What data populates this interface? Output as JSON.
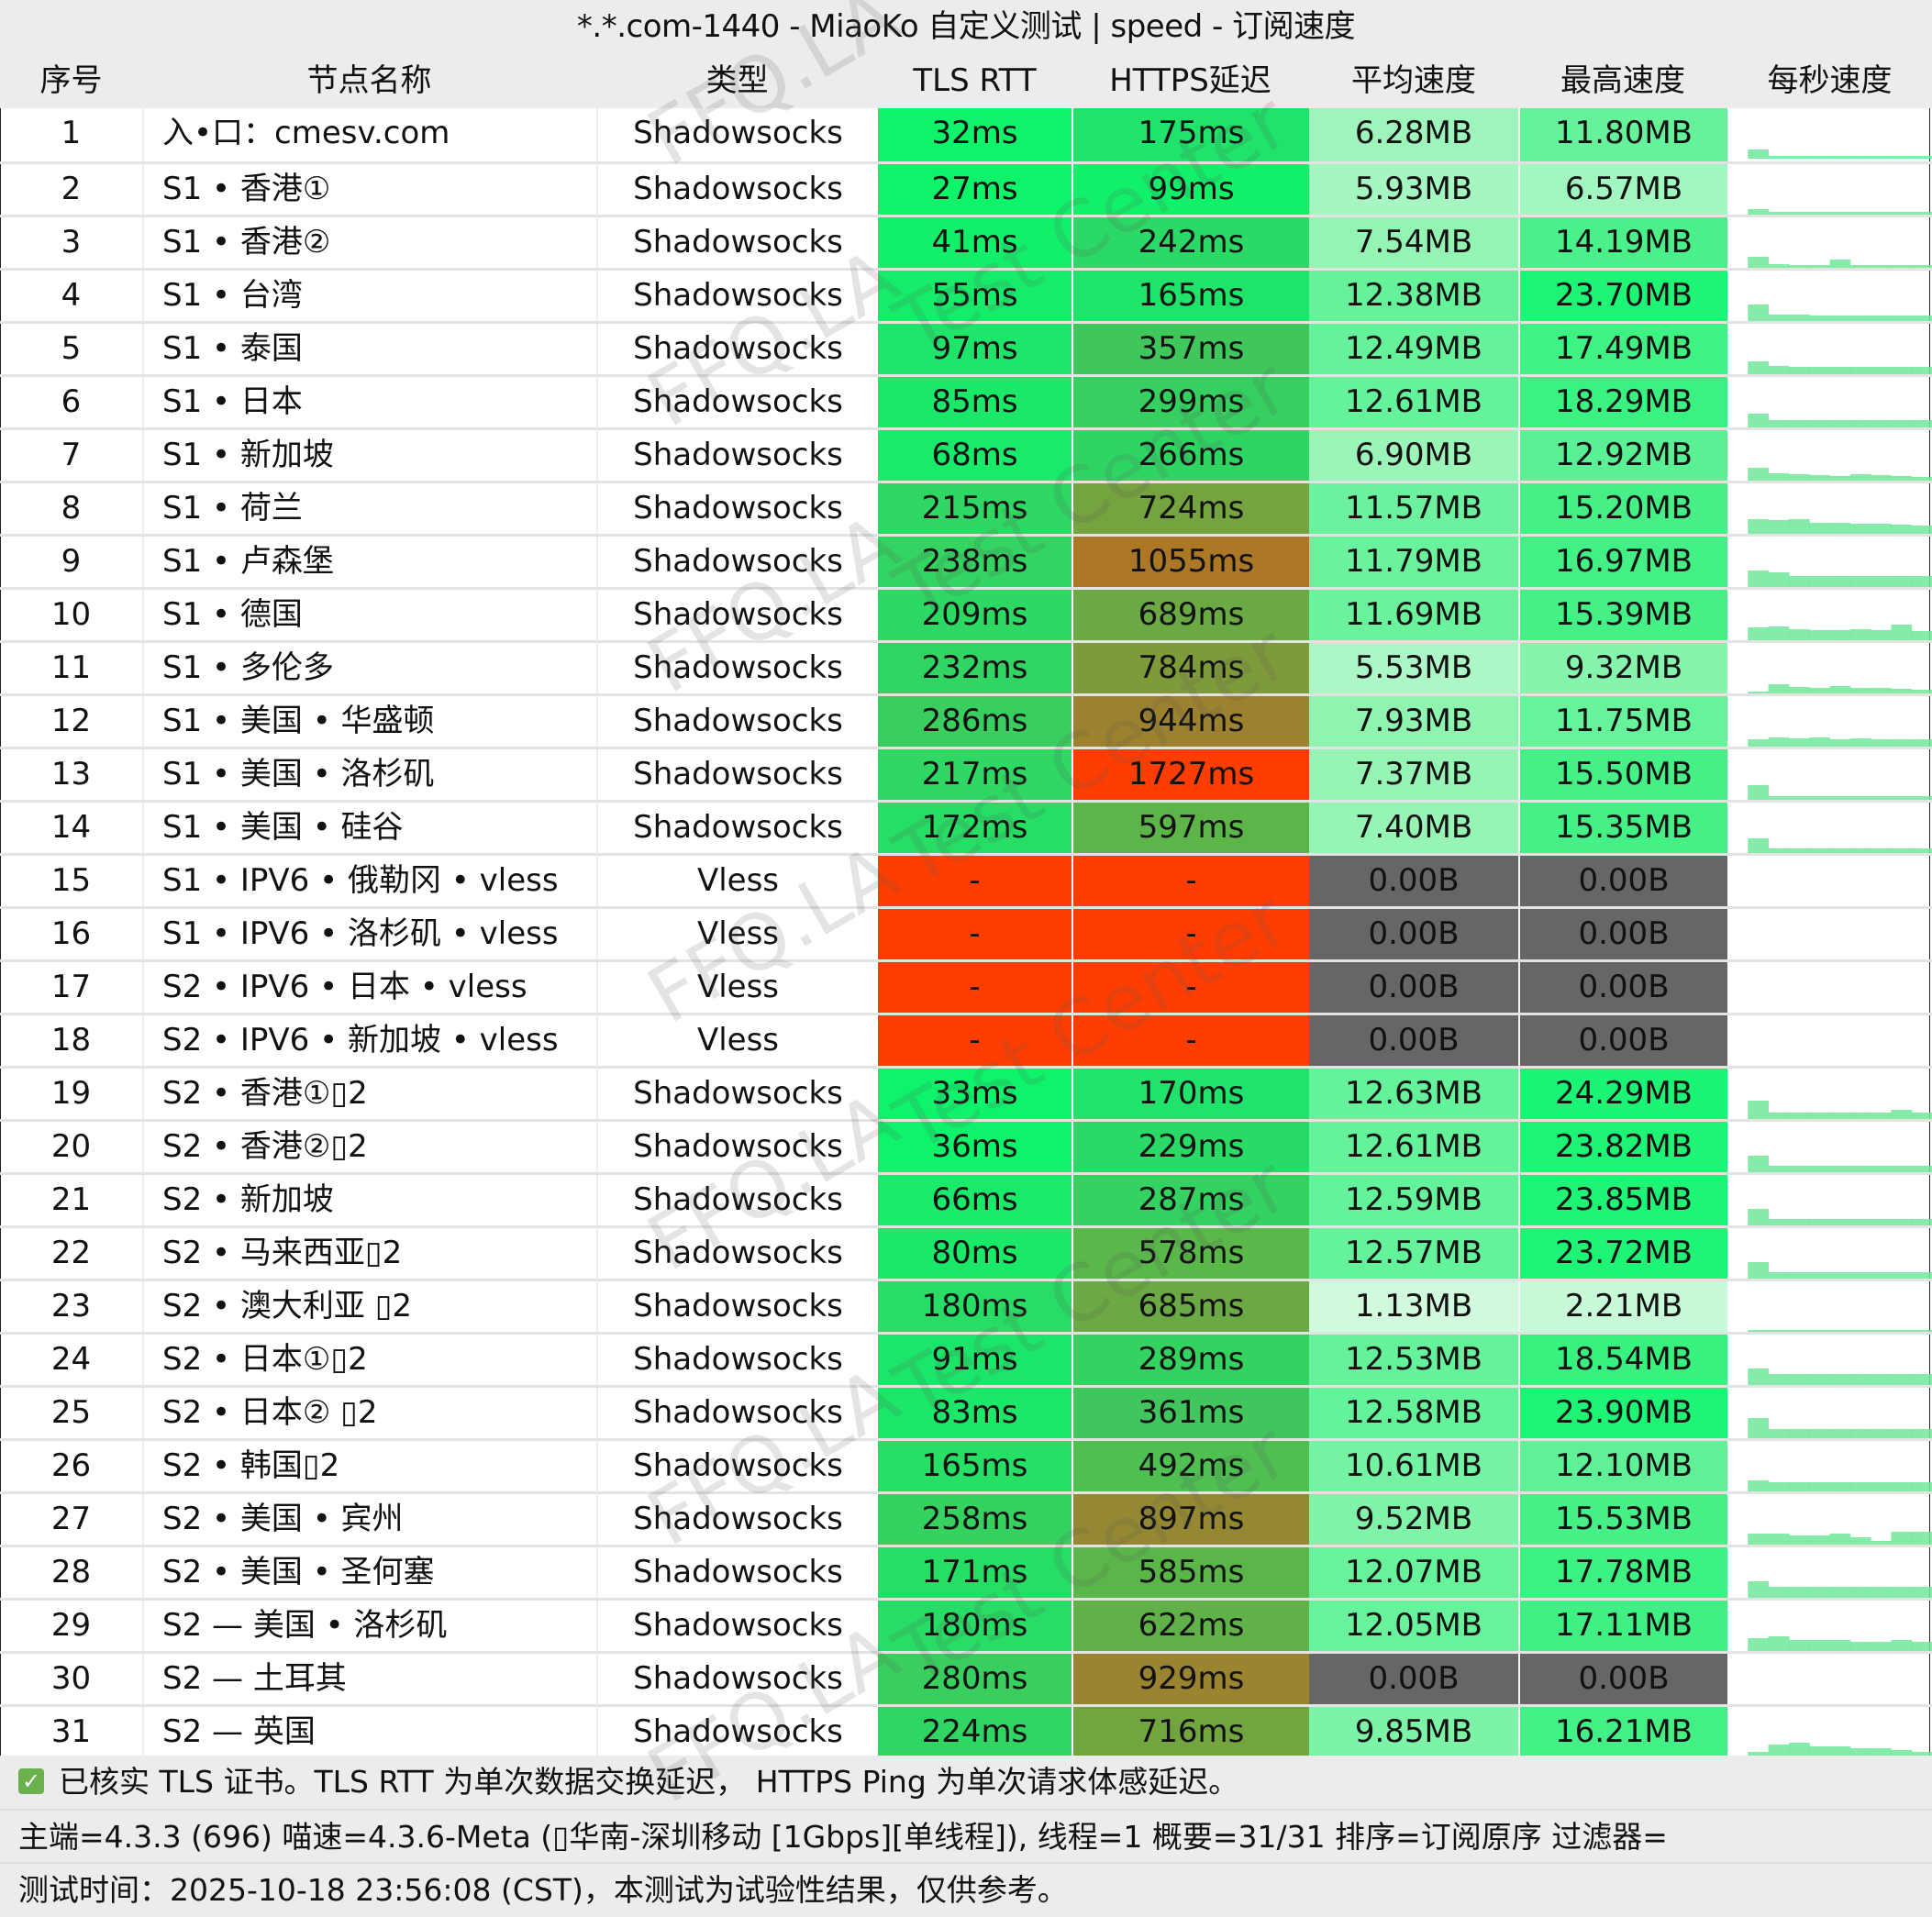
{
  "title": "*.*.com-1440 - MiaoKo 自定义测试 | speed - 订阅速度",
  "columns": [
    "序号",
    "节点名称",
    "类型",
    "TLS RTT",
    "HTTPS延迟",
    "平均速度",
    "最高速度",
    "每秒速度"
  ],
  "colors": {
    "header_bg": "#ececec",
    "fail_red": "#ff3d00",
    "zero_gray": "#666666",
    "checkbox_green": "#6ab04c",
    "sparkline": "#6ee89a"
  },
  "rows": [
    {
      "idx": "1",
      "name": "入•口：cmesv.com",
      "type": "Shadowsocks",
      "tls": "32ms",
      "tls_bg": "#0ef46a",
      "https": "175ms",
      "https_bg": "#1fe36a",
      "avg": "6.28MB",
      "avg_bg": "#9ef5bb",
      "max": "11.80MB",
      "max_bg": "#66f29b",
      "spark": [
        0,
        10,
        3,
        3,
        3,
        3,
        3,
        3,
        3,
        3
      ]
    },
    {
      "idx": "2",
      "name": "S1 • 香港①",
      "type": "Shadowsocks",
      "tls": "27ms",
      "tls_bg": "#0ef46a",
      "https": "99ms",
      "https_bg": "#12f06a",
      "avg": "5.93MB",
      "avg_bg": "#a6f6c1",
      "max": "6.57MB",
      "max_bg": "#a2f6bf",
      "spark": [
        0,
        6,
        3,
        3,
        3,
        3,
        3,
        3,
        3,
        3
      ]
    },
    {
      "idx": "3",
      "name": "S1 • 香港②",
      "type": "Shadowsocks",
      "tls": "41ms",
      "tls_bg": "#12f06a",
      "https": "242ms",
      "https_bg": "#2bd966",
      "avg": "7.54MB",
      "avg_bg": "#94f4b4",
      "max": "14.19MB",
      "max_bg": "#4af089",
      "spark": [
        0,
        12,
        4,
        3,
        3,
        9,
        3,
        3,
        3,
        3
      ]
    },
    {
      "idx": "4",
      "name": "S1 • 台湾",
      "type": "Shadowsocks",
      "tls": "55ms",
      "tls_bg": "#16ec69",
      "https": "165ms",
      "https_bg": "#1fe46a",
      "avg": "12.38MB",
      "avg_bg": "#66f29b",
      "max": "23.70MB",
      "max_bg": "#1ef577",
      "spark": [
        0,
        18,
        7,
        7,
        6,
        6,
        6,
        6,
        6,
        6
      ]
    },
    {
      "idx": "5",
      "name": "S1 • 泰国",
      "type": "Shadowsocks",
      "tls": "97ms",
      "tls_bg": "#1ee569",
      "https": "357ms",
      "https_bg": "#3fc75c",
      "avg": "12.49MB",
      "avg_bg": "#66f29b",
      "max": "17.49MB",
      "max_bg": "#3ef283",
      "spark": [
        0,
        14,
        9,
        8,
        8,
        8,
        8,
        8,
        8,
        8
      ]
    },
    {
      "idx": "6",
      "name": "S1 • 日本",
      "type": "Shadowsocks",
      "tls": "85ms",
      "tls_bg": "#1be769",
      "https": "299ms",
      "https_bg": "#35d060",
      "avg": "12.61MB",
      "avg_bg": "#64f29a",
      "max": "18.29MB",
      "max_bg": "#3af281",
      "spark": [
        0,
        15,
        8,
        8,
        8,
        8,
        8,
        8,
        8,
        8
      ]
    },
    {
      "idx": "7",
      "name": "S1 • 新加坡",
      "type": "Shadowsocks",
      "tls": "68ms",
      "tls_bg": "#18ea69",
      "https": "266ms",
      "https_bg": "#2fd563",
      "avg": "6.90MB",
      "avg_bg": "#9cf5b8",
      "max": "12.92MB",
      "max_bg": "#5af194",
      "spark": [
        0,
        14,
        8,
        7,
        6,
        5,
        7,
        6,
        5,
        4
      ]
    },
    {
      "idx": "8",
      "name": "S1 • 荷兰",
      "type": "Shadowsocks",
      "tls": "215ms",
      "tls_bg": "#2ed863",
      "https": "724ms",
      "https_bg": "#74a33f",
      "avg": "11.57MB",
      "avg_bg": "#6cf29e",
      "max": "15.20MB",
      "max_bg": "#46f087",
      "spark": [
        0,
        16,
        15,
        16,
        12,
        12,
        11,
        11,
        10,
        9
      ]
    },
    {
      "idx": "9",
      "name": "S1 • 卢森堡",
      "type": "Shadowsocks",
      "tls": "238ms",
      "tls_bg": "#33d461",
      "https": "1055ms",
      "https_bg": "#ad7826",
      "avg": "11.79MB",
      "avg_bg": "#6af29d",
      "max": "16.97MB",
      "max_bg": "#42f085",
      "spark": [
        0,
        18,
        16,
        12,
        12,
        12,
        12,
        12,
        12,
        12
      ]
    },
    {
      "idx": "10",
      "name": "S1 • 德国",
      "type": "Shadowsocks",
      "tls": "209ms",
      "tls_bg": "#2dd963",
      "https": "689ms",
      "https_bg": "#6aa943",
      "avg": "11.69MB",
      "avg_bg": "#6bf29d",
      "max": "15.39MB",
      "max_bg": "#45f087",
      "spark": [
        0,
        14,
        15,
        12,
        11,
        11,
        12,
        11,
        17,
        10
      ]
    },
    {
      "idx": "11",
      "name": "S1 • 多伦多",
      "type": "Shadowsocks",
      "tls": "232ms",
      "tls_bg": "#31d561",
      "https": "784ms",
      "https_bg": "#7e9a3a",
      "avg": "5.53MB",
      "avg_bg": "#adf7c6",
      "max": "9.32MB",
      "max_bg": "#85f4ac",
      "spark": [
        0,
        2,
        10,
        7,
        6,
        8,
        6,
        6,
        5,
        4
      ]
    },
    {
      "idx": "12",
      "name": "S1 • 美国 • 华盛顿",
      "type": "Shadowsocks",
      "tls": "286ms",
      "tls_bg": "#38cf5f",
      "https": "944ms",
      "https_bg": "#9c822e",
      "avg": "7.93MB",
      "avg_bg": "#8ef4b0",
      "max": "11.75MB",
      "max_bg": "#67f29c",
      "spark": [
        0,
        8,
        10,
        9,
        10,
        8,
        9,
        8,
        8,
        8
      ]
    },
    {
      "idx": "13",
      "name": "S1 • 美国 • 洛杉矶",
      "type": "Shadowsocks",
      "tls": "217ms",
      "tls_bg": "#2ed863",
      "https": "1727ms",
      "https_bg": "#ff3d00",
      "avg": "7.37MB",
      "avg_bg": "#96f4b5",
      "max": "15.50MB",
      "max_bg": "#45f087",
      "spark": [
        0,
        16,
        4,
        4,
        4,
        4,
        4,
        4,
        4,
        4
      ]
    },
    {
      "idx": "14",
      "name": "S1 • 美国 • 硅谷",
      "type": "Shadowsocks",
      "tls": "172ms",
      "tls_bg": "#27de65",
      "https": "597ms",
      "https_bg": "#5db549",
      "avg": "7.40MB",
      "avg_bg": "#96f4b5",
      "max": "15.35MB",
      "max_bg": "#45f087",
      "spark": [
        0,
        16,
        5,
        5,
        5,
        5,
        5,
        5,
        5,
        5
      ]
    },
    {
      "idx": "15",
      "name": "S1 •  IPV6 • 俄勒冈 • vless",
      "type": "Vless",
      "tls": "-",
      "tls_bg": "#ff3d00",
      "https": "-",
      "https_bg": "#ff3d00",
      "avg": "0.00B",
      "avg_bg": "#666666",
      "max": "0.00B",
      "max_bg": "#666666",
      "spark": []
    },
    {
      "idx": "16",
      "name": "S1 •  IPV6 • 洛杉矶 • vless",
      "type": "Vless",
      "tls": "-",
      "tls_bg": "#ff3d00",
      "https": "-",
      "https_bg": "#ff3d00",
      "avg": "0.00B",
      "avg_bg": "#666666",
      "max": "0.00B",
      "max_bg": "#666666",
      "spark": []
    },
    {
      "idx": "17",
      "name": "S2 •  IPV6 • 日本 • vless",
      "type": "Vless",
      "tls": "-",
      "tls_bg": "#ff3d00",
      "https": "-",
      "https_bg": "#ff3d00",
      "avg": "0.00B",
      "avg_bg": "#666666",
      "max": "0.00B",
      "max_bg": "#666666",
      "spark": []
    },
    {
      "idx": "18",
      "name": "S2 •  IPV6 • 新加坡 • vless",
      "type": "Vless",
      "tls": "-",
      "tls_bg": "#ff3d00",
      "https": "-",
      "https_bg": "#ff3d00",
      "avg": "0.00B",
      "avg_bg": "#666666",
      "max": "0.00B",
      "max_bg": "#666666",
      "spark": []
    },
    {
      "idx": "19",
      "name": "S2 • 香港①▯2",
      "type": "Shadowsocks",
      "tls": "33ms",
      "tls_bg": "#0ef46a",
      "https": "170ms",
      "https_bg": "#1fe36a",
      "avg": "12.63MB",
      "avg_bg": "#64f29a",
      "max": "24.29MB",
      "max_bg": "#1bf576",
      "spark": [
        0,
        20,
        7,
        7,
        7,
        7,
        7,
        7,
        10,
        7
      ]
    },
    {
      "idx": "20",
      "name": "S2 • 香港②▯2",
      "type": "Shadowsocks",
      "tls": "36ms",
      "tls_bg": "#0ef46a",
      "https": "229ms",
      "https_bg": "#29db66",
      "avg": "12.61MB",
      "avg_bg": "#64f29a",
      "max": "23.82MB",
      "max_bg": "#1ef577",
      "spark": [
        0,
        18,
        7,
        7,
        7,
        7,
        7,
        7,
        7,
        7
      ]
    },
    {
      "idx": "21",
      "name": "S2 • 新加坡",
      "type": "Shadowsocks",
      "tls": "66ms",
      "tls_bg": "#18ea69",
      "https": "287ms",
      "https_bg": "#33d261",
      "avg": "12.59MB",
      "avg_bg": "#64f29a",
      "max": "23.85MB",
      "max_bg": "#1ef577",
      "spark": [
        0,
        18,
        7,
        7,
        7,
        7,
        7,
        7,
        7,
        7
      ]
    },
    {
      "idx": "22",
      "name": "S2 • 马来西亚▯2",
      "type": "Shadowsocks",
      "tls": "80ms",
      "tls_bg": "#1ae869",
      "https": "578ms",
      "https_bg": "#5ab74a",
      "avg": "12.57MB",
      "avg_bg": "#64f29a",
      "max": "23.72MB",
      "max_bg": "#1ef577",
      "spark": [
        0,
        18,
        7,
        7,
        7,
        7,
        7,
        7,
        7,
        7
      ]
    },
    {
      "idx": "23",
      "name": "S2 • 澳大利亚 ▯2",
      "type": "Shadowsocks",
      "tls": "180ms",
      "tls_bg": "#28dd65",
      "https": "685ms",
      "https_bg": "#6aa943",
      "avg": "1.13MB",
      "avg_bg": "#d0f9de",
      "max": "2.21MB",
      "max_bg": "#c8f9d8",
      "spark": [
        0,
        2,
        2,
        2,
        2,
        2,
        2,
        2,
        2,
        2
      ]
    },
    {
      "idx": "24",
      "name": "S2 • 日本①▯2",
      "type": "Shadowsocks",
      "tls": "91ms",
      "tls_bg": "#1ce669",
      "https": "289ms",
      "https_bg": "#33d261",
      "avg": "12.53MB",
      "avg_bg": "#65f29a",
      "max": "18.54MB",
      "max_bg": "#38f280",
      "spark": [
        0,
        18,
        12,
        12,
        12,
        12,
        12,
        12,
        12,
        12
      ]
    },
    {
      "idx": "25",
      "name": "S2 • 日本② ▯2",
      "type": "Shadowsocks",
      "tls": "83ms",
      "tls_bg": "#1be769",
      "https": "361ms",
      "https_bg": "#40c65c",
      "avg": "12.58MB",
      "avg_bg": "#64f29a",
      "max": "23.90MB",
      "max_bg": "#1ef577",
      "spark": [
        0,
        22,
        10,
        10,
        10,
        10,
        10,
        10,
        10,
        10
      ]
    },
    {
      "idx": "26",
      "name": "S2 • 韩国▯2",
      "type": "Shadowsocks",
      "tls": "165ms",
      "tls_bg": "#26df65",
      "https": "492ms",
      "https_bg": "#4fbf52",
      "avg": "10.61MB",
      "avg_bg": "#74f3a3",
      "max": "12.10MB",
      "max_bg": "#60f198",
      "spark": [
        0,
        12,
        10,
        10,
        10,
        10,
        10,
        10,
        10,
        10
      ]
    },
    {
      "idx": "27",
      "name": "S2 • 美国 • 宾州",
      "type": "Shadowsocks",
      "tls": "258ms",
      "tls_bg": "#35d260",
      "https": "897ms",
      "https_bg": "#958833",
      "avg": "9.52MB",
      "avg_bg": "#80f3a8",
      "max": "15.53MB",
      "max_bg": "#45f087",
      "spark": [
        0,
        12,
        12,
        10,
        10,
        12,
        8,
        4,
        14,
        14
      ]
    },
    {
      "idx": "28",
      "name": "S2 • 美国 • 圣何塞",
      "type": "Shadowsocks",
      "tls": "171ms",
      "tls_bg": "#27de65",
      "https": "585ms",
      "https_bg": "#5bb64a",
      "avg": "12.07MB",
      "avg_bg": "#68f29c",
      "max": "17.78MB",
      "max_bg": "#3cf282",
      "spark": [
        0,
        18,
        12,
        12,
        12,
        12,
        12,
        12,
        12,
        12
      ]
    },
    {
      "idx": "29",
      "name": "S2 — 美国 • 洛杉矶",
      "type": "Shadowsocks",
      "tls": "180ms",
      "tls_bg": "#28dd65",
      "https": "622ms",
      "https_bg": "#60b147",
      "avg": "12.05MB",
      "avg_bg": "#68f29c",
      "max": "17.11MB",
      "max_bg": "#40f084",
      "spark": [
        0,
        14,
        16,
        12,
        12,
        12,
        10,
        10,
        12,
        10
      ]
    },
    {
      "idx": "30",
      "name": "S2 — 土耳其",
      "type": "Shadowsocks",
      "tls": "280ms",
      "tls_bg": "#38cf5f",
      "https": "929ms",
      "https_bg": "#9a842f",
      "avg": "0.00B",
      "avg_bg": "#666666",
      "max": "0.00B",
      "max_bg": "#666666",
      "spark": []
    },
    {
      "idx": "31",
      "name": "S2 — 英国",
      "type": "Shadowsocks",
      "tls": "224ms",
      "tls_bg": "#30d662",
      "https": "716ms",
      "https_bg": "#72a540",
      "avg": "9.85MB",
      "avg_bg": "#7cf3a6",
      "max": "16.21MB",
      "max_bg": "#43f086",
      "spark": [
        0,
        6,
        14,
        16,
        12,
        12,
        10,
        10,
        8,
        6
      ]
    }
  ],
  "footer": {
    "note": "已核实 TLS 证书。TLS RTT 为单次数据交换延迟， HTTPS Ping 为单次请求体感延迟。",
    "version_line": "主端=4.3.3 (696) 喵速=4.3.6-Meta (▯华南-深圳移动 [1Gbps][单线程]), 线程=1 概要=31/31 排序=订阅原序 过滤器=",
    "time_line": "测试时间：2025-10-18 23:56:08 (CST)，本测试为试验性结果，仅供参考。"
  },
  "watermarks": [
    "FFQ.LA",
    "Test Center"
  ]
}
